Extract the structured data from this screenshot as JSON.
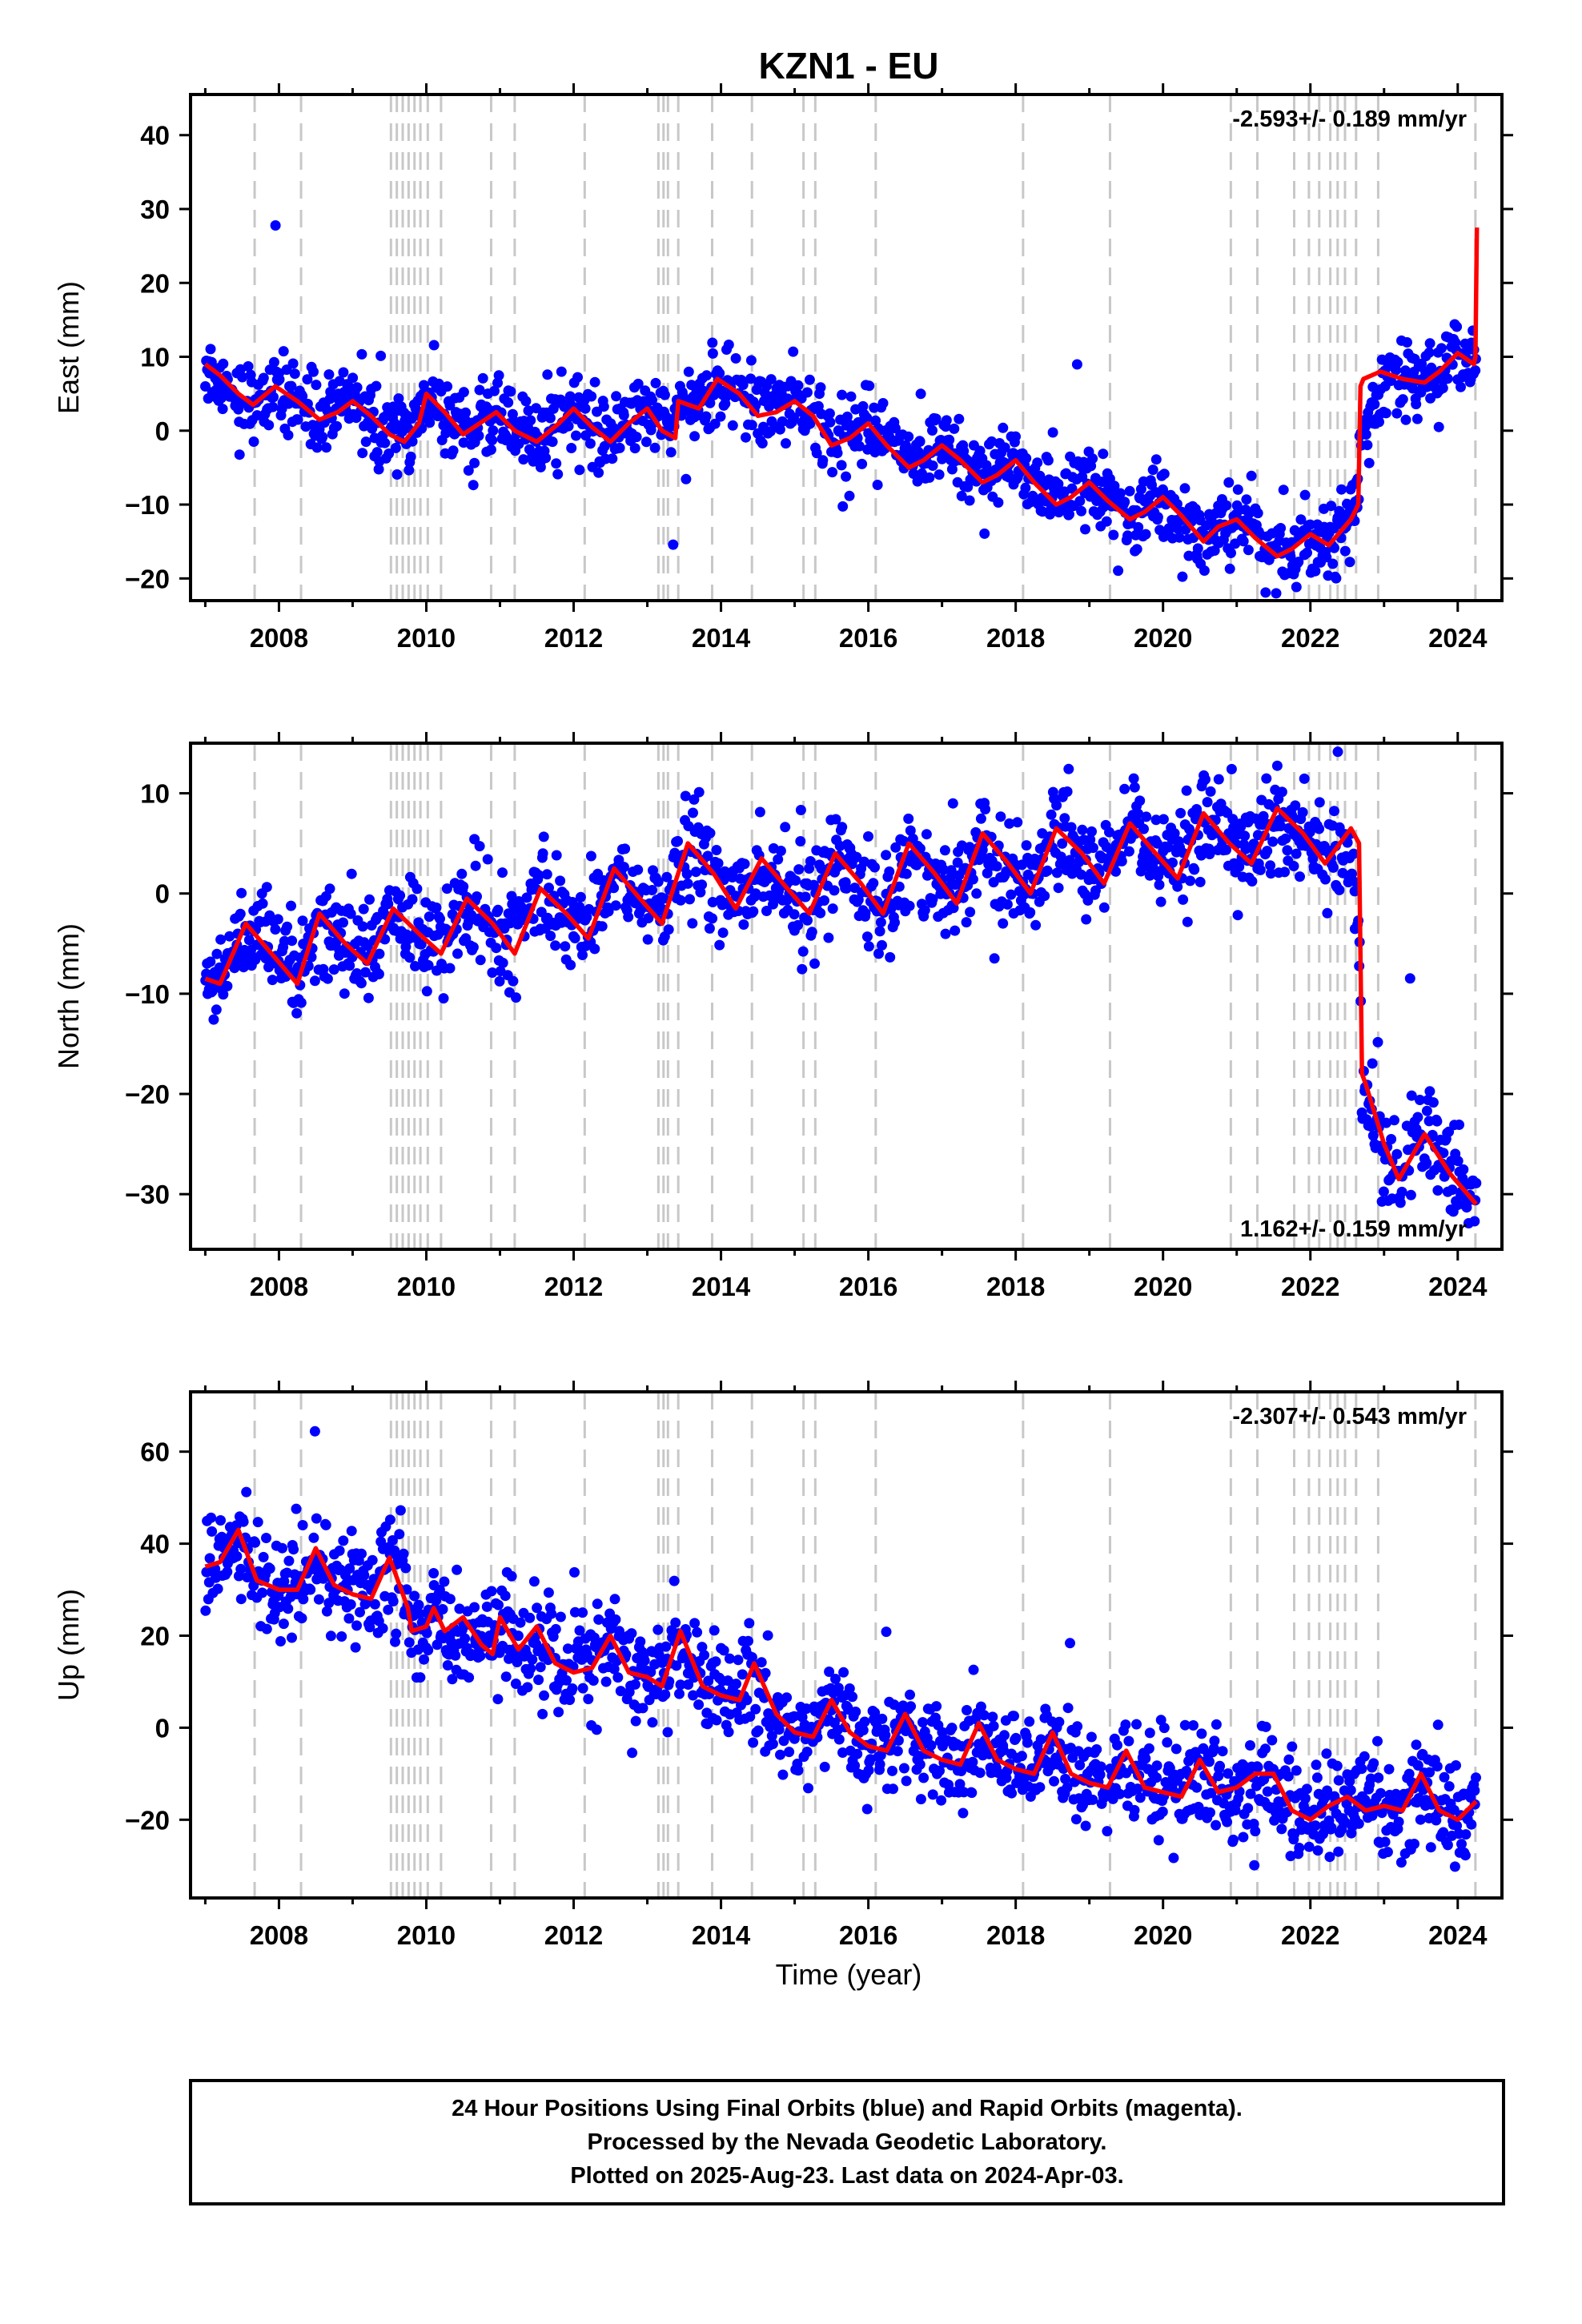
{
  "chart_data": {
    "type": "scatter",
    "title": "KZN1 - EU",
    "xlabel": "Time (year)",
    "xlim": [
      2006.8,
      2024.6
    ],
    "xticks": [
      2008,
      2010,
      2012,
      2014,
      2016,
      2018,
      2020,
      2022,
      2024
    ],
    "xticklabels": [
      "2008",
      "2010",
      "2012",
      "2014",
      "2016",
      "2018",
      "2020",
      "2022",
      "2024"
    ],
    "vertical_dashed_lines": [
      2007.67,
      2008.3,
      2009.52,
      2009.6,
      2009.68,
      2009.76,
      2009.84,
      2009.92,
      2010.02,
      2010.2,
      2010.88,
      2011.2,
      2012.15,
      2013.15,
      2013.22,
      2013.28,
      2013.42,
      2013.88,
      2014.42,
      2015.12,
      2015.28,
      2016.1,
      2018.1,
      2019.28,
      2020.92,
      2021.28,
      2021.78,
      2021.98,
      2022.12,
      2022.27,
      2022.37,
      2022.47,
      2022.62,
      2022.92,
      2024.24
    ],
    "colors": {
      "final_orbits": "#0000ff",
      "model": "#ff0000",
      "event_lines": "#c8c8c8"
    },
    "panels": [
      {
        "name": "east",
        "ylabel": "East (mm)",
        "ylim": [
          -23,
          45.5
        ],
        "yticks": [
          -20,
          -10,
          0,
          10,
          20,
          30,
          40
        ],
        "yticklabels": [
          "−20",
          "−10",
          "0",
          "10",
          "20",
          "30",
          "40"
        ],
        "rate_label": "-2.593+/- 0.189 mm/yr",
        "rate_position": "top-right",
        "series": [
          {
            "type": "scatter-band",
            "x": [
              2007.0,
              2007.5,
              2008.0,
              2008.5,
              2009.0,
              2009.5,
              2010.0,
              2010.5,
              2011.0,
              2011.5,
              2012.0,
              2012.5,
              2013.0,
              2013.5,
              2014.0,
              2014.5,
              2015.0,
              2015.5,
              2016.0,
              2016.5,
              2017.0,
              2017.5,
              2018.0,
              2018.5,
              2019.0,
              2019.5,
              2020.0,
              2020.5,
              2021.0,
              2021.5,
              2022.0,
              2022.5,
              2022.7,
              2023.0,
              2023.5,
              2024.0,
              2024.25
            ],
            "y": [
              8,
              4.5,
              5,
              2,
              4,
              0,
              4,
              1,
              2,
              0.5,
              2,
              1,
              3,
              3,
              6,
              3,
              4,
              0,
              0,
              -3,
              -2,
              -5,
              -5,
              -8,
              -8,
              -11,
              -10,
              -13,
              -13,
              -16,
              -15,
              -12,
              -10,
              8,
              8,
              9,
              10
            ],
            "spread": 3.5
          },
          {
            "type": "line",
            "x": [
              2007.0,
              2007.2,
              2007.45,
              2007.65,
              2007.95,
              2008.25,
              2008.55,
              2008.8,
              2009.0,
              2009.25,
              2009.5,
              2009.7,
              2009.9,
              2010.0,
              2010.25,
              2010.5,
              2010.8,
              2010.95,
              2011.2,
              2011.5,
              2011.8,
              2012.0,
              2012.25,
              2012.5,
              2012.75,
              2013.0,
              2013.2,
              2013.38,
              2013.42,
              2013.7,
              2013.95,
              2014.25,
              2014.5,
              2014.75,
              2015.0,
              2015.25,
              2015.5,
              2015.75,
              2016.0,
              2016.25,
              2016.55,
              2016.75,
              2017.0,
              2017.25,
              2017.55,
              2017.75,
              2018.0,
              2018.25,
              2018.55,
              2018.75,
              2019.0,
              2019.25,
              2019.55,
              2019.75,
              2020.0,
              2020.25,
              2020.55,
              2020.75,
              2021.0,
              2021.25,
              2021.55,
              2021.75,
              2022.0,
              2022.25,
              2022.55,
              2022.65,
              2022.68,
              2022.72,
              2022.95,
              2023.25,
              2023.55,
              2023.75,
              2024.0,
              2024.22,
              2024.24,
              2024.26
            ],
            "y": [
              9,
              7.5,
              5,
              3.5,
              6,
              4,
              1.5,
              2.5,
              4,
              2,
              -0.5,
              -1.5,
              1,
              5,
              2.5,
              -0.5,
              1.5,
              2.5,
              0,
              -1.5,
              1,
              3,
              0.5,
              -1.5,
              1,
              3,
              0,
              -1,
              4,
              3,
              7,
              5,
              2,
              2.5,
              4,
              2,
              -2,
              -1,
              1,
              -2,
              -5,
              -4,
              -2,
              -4,
              -7,
              -6,
              -4,
              -7,
              -10,
              -9,
              -7,
              -9.5,
              -12,
              -11,
              -9,
              -11.5,
              -15,
              -13,
              -12,
              -14.5,
              -17,
              -16,
              -14,
              -15.5,
              -12,
              -10,
              6,
              7,
              8,
              7,
              6.5,
              8,
              10.5,
              9,
              10,
              27.5
            ]
          }
        ]
      },
      {
        "name": "north",
        "ylabel": "North (mm)",
        "ylim": [
          -35.5,
          15
        ],
        "yticks": [
          -30,
          -20,
          -10,
          0,
          10
        ],
        "yticklabels": [
          "−30",
          "−20",
          "−10",
          "0",
          "10"
        ],
        "rate_label": "1.162+/- 0.159 mm/yr",
        "rate_position": "bottom-right",
        "series": [
          {
            "type": "scatter-band",
            "x": [
              2007.0,
              2007.5,
              2008.0,
              2008.5,
              2009.0,
              2009.5,
              2010.0,
              2010.5,
              2011.0,
              2011.5,
              2012.0,
              2012.5,
              2013.0,
              2013.5,
              2014.0,
              2014.5,
              2015.0,
              2015.5,
              2016.0,
              2016.5,
              2017.0,
              2017.5,
              2018.0,
              2018.5,
              2019.0,
              2019.5,
              2020.0,
              2020.5,
              2021.0,
              2021.5,
              2022.0,
              2022.5,
              2022.7,
              2023.0,
              2023.5,
              2024.0,
              2024.25
            ],
            "y": [
              -8,
              -4,
              -8,
              -3,
              -6,
              -2,
              -5,
              -1,
              -4,
              0,
              -3,
              1,
              -1,
              3,
              0,
              1,
              -1,
              2,
              -1,
              3,
              0,
              4,
              1,
              4,
              2,
              5,
              3,
              7,
              4,
              7,
              5,
              4,
              -19,
              -27,
              -24,
              -28,
              -31
            ],
            "spread": 3.5
          },
          {
            "type": "line",
            "x": [
              2007.0,
              2007.2,
              2007.55,
              2007.9,
              2008.25,
              2008.55,
              2008.9,
              2009.2,
              2009.55,
              2009.9,
              2010.2,
              2010.55,
              2010.9,
              2011.2,
              2011.55,
              2011.9,
              2012.2,
              2012.55,
              2012.9,
              2013.2,
              2013.55,
              2013.9,
              2014.2,
              2014.55,
              2014.9,
              2015.2,
              2015.55,
              2015.9,
              2016.2,
              2016.55,
              2016.9,
              2017.2,
              2017.55,
              2017.9,
              2018.2,
              2018.55,
              2018.9,
              2019.2,
              2019.55,
              2019.9,
              2020.2,
              2020.55,
              2020.9,
              2021.2,
              2021.55,
              2021.9,
              2022.2,
              2022.55,
              2022.66,
              2022.7,
              2022.75,
              2023.0,
              2023.2,
              2023.55,
              2023.9,
              2024.25
            ],
            "y": [
              -8.5,
              -9,
              -3,
              -6,
              -9,
              -2,
              -5,
              -7,
              -1.5,
              -4,
              -6,
              -0.5,
              -3,
              -6,
              0.5,
              -2,
              -4.5,
              2.5,
              -0.5,
              -3,
              5,
              2,
              -1.5,
              3.5,
              0.5,
              -2,
              4,
              1,
              -2,
              5,
              2,
              -1,
              6,
              3,
              0,
              6.5,
              4,
              1,
              7,
              4,
              1.5,
              8,
              5,
              3,
              8.5,
              6,
              3,
              6.5,
              5,
              -18,
              -19,
              -25,
              -28.5,
              -24,
              -28,
              -31
            ]
          }
        ]
      },
      {
        "name": "up",
        "ylabel": "Up (mm)",
        "ylim": [
          -37,
          73
        ],
        "yticks": [
          -20,
          0,
          20,
          40,
          60
        ],
        "yticklabels": [
          "−20",
          "0",
          "20",
          "40",
          "60"
        ],
        "rate_label": "-2.307+/- 0.543 mm/yr",
        "rate_position": "top-right",
        "series": [
          {
            "type": "scatter-band",
            "x": [
              2007.0,
              2007.5,
              2008.0,
              2008.5,
              2009.0,
              2009.5,
              2010.0,
              2010.5,
              2011.0,
              2011.5,
              2012.0,
              2012.5,
              2013.0,
              2013.5,
              2014.0,
              2014.5,
              2015.0,
              2015.5,
              2016.0,
              2016.5,
              2017.0,
              2017.5,
              2018.0,
              2018.5,
              2019.0,
              2019.5,
              2020.0,
              2020.5,
              2021.0,
              2021.5,
              2022.0,
              2022.5,
              2023.0,
              2023.5,
              2024.0,
              2024.25
            ],
            "y": [
              35,
              40,
              31,
              36,
              29,
              34,
              22,
              20,
              16,
              20,
              13,
              16,
              10,
              18,
              8,
              8,
              -1,
              5,
              -3,
              0,
              -5,
              -3,
              -8,
              -6,
              -11,
              -8,
              -13,
              -10,
              -14,
              -11,
              -18,
              -15,
              -17,
              -14,
              -19,
              -17
            ],
            "spread": 8
          },
          {
            "type": "line",
            "x": [
              2007.0,
              2007.2,
              2007.45,
              2007.7,
              2008.0,
              2008.25,
              2008.5,
              2008.75,
              2009.0,
              2009.25,
              2009.5,
              2009.75,
              2009.8,
              2010.0,
              2010.1,
              2010.25,
              2010.5,
              2010.75,
              2010.9,
              2011.0,
              2011.25,
              2011.5,
              2011.75,
              2012.0,
              2012.25,
              2012.5,
              2012.75,
              2013.0,
              2013.2,
              2013.45,
              2013.75,
              2014.0,
              2014.25,
              2014.45,
              2014.75,
              2015.0,
              2015.25,
              2015.5,
              2015.75,
              2016.0,
              2016.25,
              2016.5,
              2016.75,
              2017.0,
              2017.25,
              2017.5,
              2017.75,
              2018.0,
              2018.25,
              2018.5,
              2018.75,
              2019.0,
              2019.25,
              2019.5,
              2019.75,
              2020.0,
              2020.25,
              2020.5,
              2020.75,
              2021.0,
              2021.25,
              2021.5,
              2021.75,
              2022.0,
              2022.25,
              2022.5,
              2022.75,
              2023.0,
              2023.25,
              2023.5,
              2023.75,
              2024.0,
              2024.25
            ],
            "y": [
              35,
              36,
              43,
              32,
              30,
              30,
              39,
              31,
              29,
              28,
              37,
              26,
              21,
              22,
              26,
              21,
              24,
              18,
              16,
              24,
              17,
              22,
              14,
              12,
              13,
              20,
              12,
              11,
              9,
              21,
              9,
              7,
              6,
              14,
              3,
              -1,
              -2,
              6,
              -1,
              -4,
              -5,
              3,
              -5,
              -7,
              -8,
              1,
              -7,
              -9,
              -10,
              -1,
              -10,
              -12,
              -13,
              -5,
              -13,
              -14,
              -15,
              -7,
              -14,
              -13,
              -10,
              -10,
              -18,
              -20,
              -17,
              -15,
              -18,
              -17,
              -18,
              -10,
              -18,
              -20,
              -16
            ]
          }
        ]
      }
    ],
    "footer_lines": [
      "24 Hour Positions Using Final Orbits (blue) and Rapid Orbits (magenta).",
      "Processed by the Nevada Geodetic Laboratory.",
      "Plotted on 2025-Aug-23. Last data on 2024-Apr-03."
    ]
  }
}
